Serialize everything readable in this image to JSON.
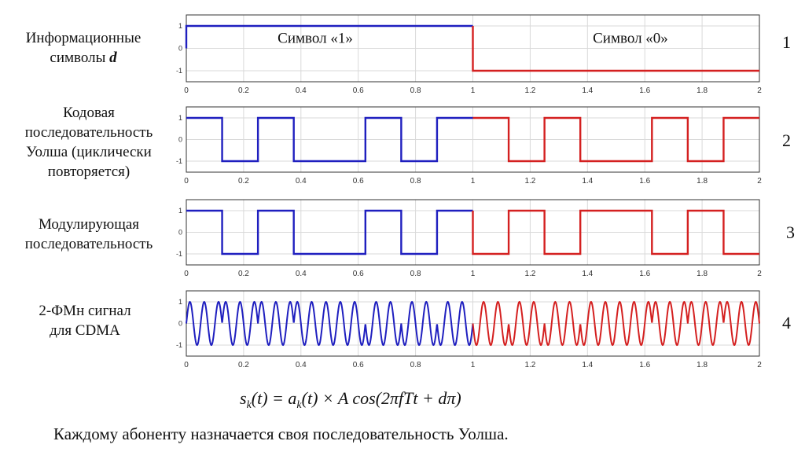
{
  "labels": [
    {
      "lines": [
        "Информационные",
        "символы"
      ],
      "emph": "d"
    },
    {
      "lines": [
        "Кодовая",
        "последовательность",
        "Уолша (циклически",
        "повторяется)"
      ]
    },
    {
      "lines": [
        "Модулирующая",
        "последовательность"
      ]
    },
    {
      "lines": [
        "2-ФМн сигнал",
        "для CDMA"
      ]
    }
  ],
  "panel_numbers": [
    "1",
    "2",
    "3",
    "4"
  ],
  "formula": {
    "s": "s",
    "k": "k",
    "eq": "(t) = a",
    "rest": "(t) × A cos(2πfTt + dπ)"
  },
  "caption": "Каждому абоненту назначается своя последовательность Уолша.",
  "colors": {
    "first_symbol": "#1f1fbf",
    "second_symbol": "#d42020",
    "grid": "#d9d9d9",
    "axis": "#333333"
  },
  "chart_data": [
    {
      "type": "line",
      "xlim": [
        0,
        2
      ],
      "ylim": [
        -1,
        1
      ],
      "xticks": [
        0,
        0.2,
        0.4,
        0.6,
        0.8,
        1,
        1.2,
        1.4,
        1.6,
        1.8,
        2
      ],
      "yticks": [
        1,
        0,
        -1
      ],
      "grid": true,
      "annotations": [
        {
          "text": "Символ «1»",
          "x": 0.45,
          "y": 0.45
        },
        {
          "text": "Символ «0»",
          "x": 1.55,
          "y": 0.45
        }
      ],
      "steps": [
        1,
        -1
      ]
    },
    {
      "type": "line",
      "xlim": [
        0,
        2
      ],
      "ylim": [
        -1,
        1
      ],
      "xticks": [
        0,
        0.2,
        0.4,
        0.6,
        0.8,
        1,
        1.2,
        1.4,
        1.6,
        1.8,
        2
      ],
      "yticks": [
        1,
        0,
        -1
      ],
      "grid": true,
      "steps": [
        1,
        -1,
        1,
        -1,
        -1,
        1,
        -1,
        1,
        1,
        -1,
        1,
        -1,
        -1,
        1,
        -1,
        1
      ]
    },
    {
      "type": "line",
      "xlim": [
        0,
        2
      ],
      "ylim": [
        -1,
        1
      ],
      "xticks": [
        0,
        0.2,
        0.4,
        0.6,
        0.8,
        1,
        1.2,
        1.4,
        1.6,
        1.8,
        2
      ],
      "yticks": [
        1,
        0,
        -1
      ],
      "grid": true,
      "steps": [
        1,
        -1,
        1,
        -1,
        -1,
        1,
        -1,
        1,
        -1,
        1,
        -1,
        1,
        1,
        -1,
        1,
        -1
      ]
    },
    {
      "type": "line",
      "xlim": [
        0,
        2
      ],
      "ylim": [
        -1,
        1
      ],
      "xticks": [
        0,
        0.2,
        0.4,
        0.6,
        0.8,
        1,
        1.2,
        1.4,
        1.6,
        1.8,
        2
      ],
      "yticks": [
        1,
        0,
        -1
      ],
      "grid": true,
      "carrier_cycles": 40,
      "phase_steps": [
        1,
        -1,
        1,
        -1,
        -1,
        1,
        -1,
        1,
        -1,
        1,
        -1,
        1,
        1,
        -1,
        1,
        -1
      ]
    }
  ]
}
